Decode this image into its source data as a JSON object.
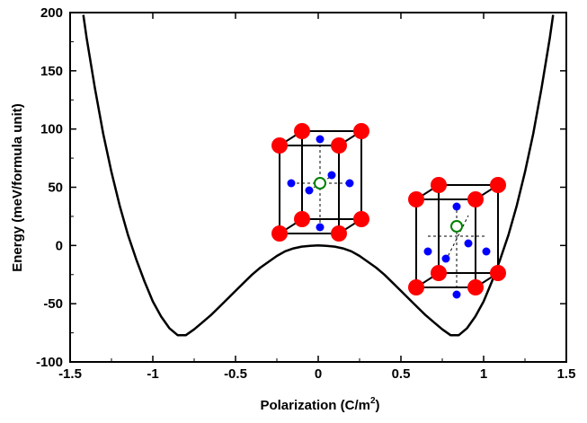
{
  "chart_data": {
    "type": "line",
    "title": "",
    "xlabel": "Polarization (C/m",
    "xlabel_sup": "2",
    "xlabel_end": ")",
    "ylabel": "Energy (meV/formula unit)",
    "xlim": [
      -1.5,
      1.5
    ],
    "ylim": [
      -100,
      200
    ],
    "xticks": [
      -1.5,
      -1,
      -0.5,
      0,
      0.5,
      1,
      1.5
    ],
    "xtick_labels": [
      "-1.5",
      "-1",
      "-0.5",
      "0",
      "0.5",
      "1",
      "1.5"
    ],
    "yticks": [
      -100,
      -50,
      0,
      50,
      100,
      150,
      200
    ],
    "ytick_labels": [
      "-100",
      "-50",
      "0",
      "50",
      "100",
      "150",
      "200"
    ],
    "grid": false,
    "series": [
      {
        "color": "#000000",
        "x": [
          -1.42,
          -1.4,
          -1.35,
          -1.3,
          -1.25,
          -1.2,
          -1.15,
          -1.1,
          -1.05,
          -1.0,
          -0.95,
          -0.9,
          -0.85,
          -0.8,
          -0.75,
          -0.7,
          -0.65,
          -0.6,
          -0.55,
          -0.5,
          -0.45,
          -0.4,
          -0.35,
          -0.3,
          -0.25,
          -0.2,
          -0.15,
          -0.1,
          -0.05,
          0.0,
          0.05,
          0.1,
          0.15,
          0.2,
          0.25,
          0.3,
          0.35,
          0.4,
          0.45,
          0.5,
          0.55,
          0.6,
          0.65,
          0.7,
          0.75,
          0.8,
          0.85,
          0.9,
          0.95,
          1.0,
          1.05,
          1.1,
          1.15,
          1.2,
          1.25,
          1.3,
          1.35,
          1.4,
          1.42
        ],
        "y": [
          198,
          178,
          135,
          96,
          63,
          34,
          9,
          -12,
          -31,
          -48,
          -61,
          -71,
          -77,
          -77,
          -72,
          -66,
          -60,
          -53,
          -46,
          -39,
          -32,
          -25,
          -19,
          -14,
          -9,
          -5,
          -2.5,
          -1,
          -0.3,
          0,
          -0.3,
          -1,
          -2.5,
          -5,
          -9,
          -14,
          -19,
          -25,
          -32,
          -39,
          -46,
          -53,
          -60,
          -66,
          -72,
          -77,
          -77,
          -71,
          -61,
          -48,
          -31,
          -12,
          9,
          34,
          63,
          96,
          135,
          178,
          198
        ]
      }
    ]
  },
  "colors": {
    "line": "#000000",
    "atom_corner": "#ff0000",
    "atom_face": "#0000ff",
    "atom_center": "#008000"
  },
  "insets": [
    {
      "name": "centrosymmetric-unit-cell",
      "icon": "perovskite-unit-cell",
      "near_x": 0,
      "near_y": 50
    },
    {
      "name": "polar-unit-cell",
      "icon": "distorted-perovskite-unit-cell",
      "near_x": 0.8,
      "near_y": 0
    }
  ]
}
